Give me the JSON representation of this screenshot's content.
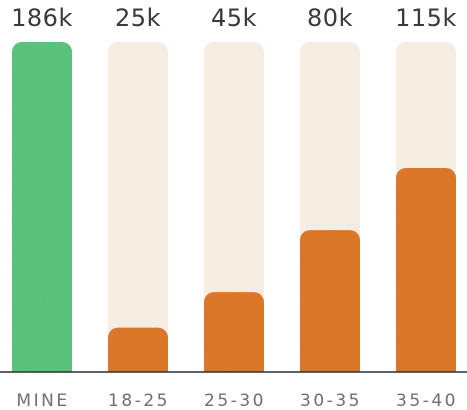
{
  "chart_data": {
    "type": "bar",
    "categories": [
      "MINE",
      "18-25",
      "25-30",
      "30-35",
      "35-40"
    ],
    "values": [
      186,
      25,
      45,
      80,
      115
    ],
    "value_labels": [
      "186k",
      "25k",
      "45k",
      "80k",
      "115k"
    ],
    "title": "",
    "xlabel": "",
    "ylabel": "",
    "ylim": [
      0,
      186
    ],
    "grid": false,
    "legend": "none",
    "colors": {
      "highlight_bar": "#5cc77f",
      "bar": "#e07a2a",
      "track": "#f5ede1",
      "baseline": "#2f2f2f",
      "value_text": "#3a3a3a",
      "category_text": "#6f6f6f"
    }
  }
}
